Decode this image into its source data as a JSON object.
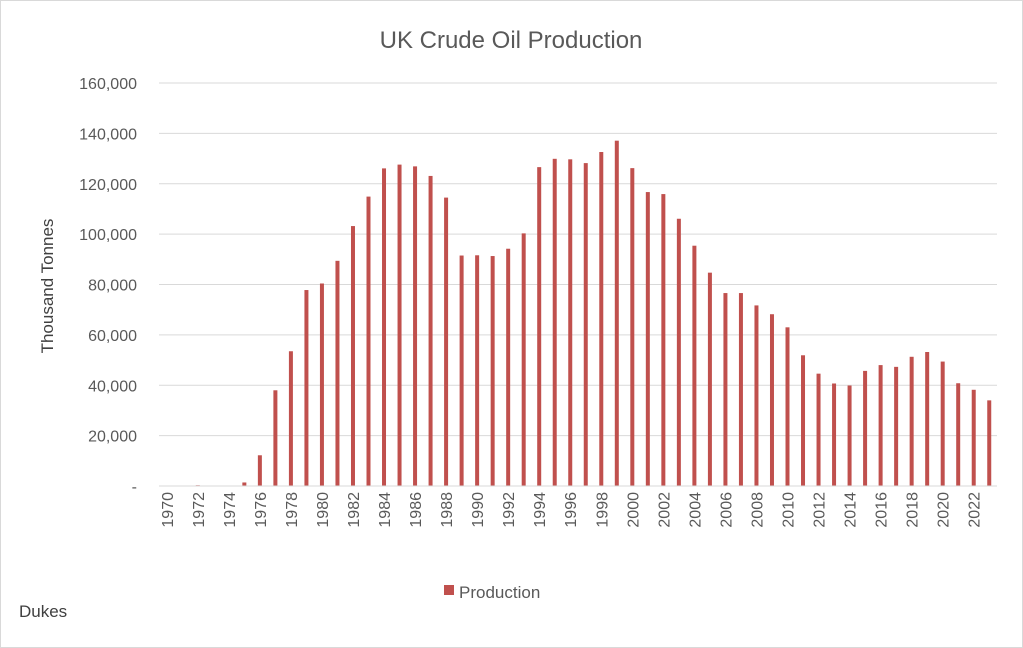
{
  "chart_data": {
    "type": "bar",
    "title": "UK Crude Oil Production",
    "ylabel": "Thousand Tonnes",
    "xlabel": "",
    "ylim": [
      0,
      160000
    ],
    "yticks": [
      0,
      20000,
      40000,
      60000,
      80000,
      100000,
      120000,
      140000,
      160000
    ],
    "ytick_labels": [
      "-",
      "20,000",
      "40,000",
      "60,000",
      "80,000",
      "100,000",
      "120,000",
      "140,000",
      "160,000"
    ],
    "grid": true,
    "legend_position": "bottom",
    "color": "#c0504d",
    "categories": [
      "1970",
      "1971",
      "1972",
      "1973",
      "1974",
      "1975",
      "1976",
      "1977",
      "1978",
      "1979",
      "1980",
      "1981",
      "1982",
      "1983",
      "1984",
      "1985",
      "1986",
      "1987",
      "1988",
      "1989",
      "1990",
      "1991",
      "1992",
      "1993",
      "1994",
      "1995",
      "1996",
      "1997",
      "1998",
      "1999",
      "2000",
      "2001",
      "2002",
      "2003",
      "2004",
      "2005",
      "2006",
      "2007",
      "2008",
      "2009",
      "2010",
      "2011",
      "2012",
      "2013",
      "2014",
      "2015",
      "2016",
      "2017",
      "2018",
      "2019",
      "2020",
      "2021",
      "2022",
      "2023"
    ],
    "xtick_labels": [
      "1970",
      "1972",
      "1974",
      "1976",
      "1978",
      "1980",
      "1982",
      "1984",
      "1986",
      "1988",
      "1990",
      "1992",
      "1994",
      "1996",
      "1998",
      "2000",
      "2002",
      "2004",
      "2006",
      "2008",
      "2010",
      "2012",
      "2014",
      "2016",
      "2018",
      "2020",
      "2022"
    ],
    "series": [
      {
        "name": "Production",
        "values": [
          150,
          200,
          300,
          100,
          100,
          1400,
          12200,
          38000,
          53500,
          77800,
          80400,
          89400,
          103200,
          114900,
          126100,
          127600,
          126900,
          123100,
          114500,
          91500,
          91600,
          91300,
          94200,
          100300,
          126600,
          129900,
          129700,
          128200,
          132600,
          137100,
          126200,
          116700,
          115900,
          106100,
          95400,
          84700,
          76600,
          76600,
          71700,
          68200,
          63000,
          51900,
          44600,
          40700,
          39900,
          45700,
          48000,
          47300,
          51300,
          53200,
          49400,
          40800,
          38200,
          34000
        ]
      }
    ]
  },
  "source_note": "Dukes"
}
